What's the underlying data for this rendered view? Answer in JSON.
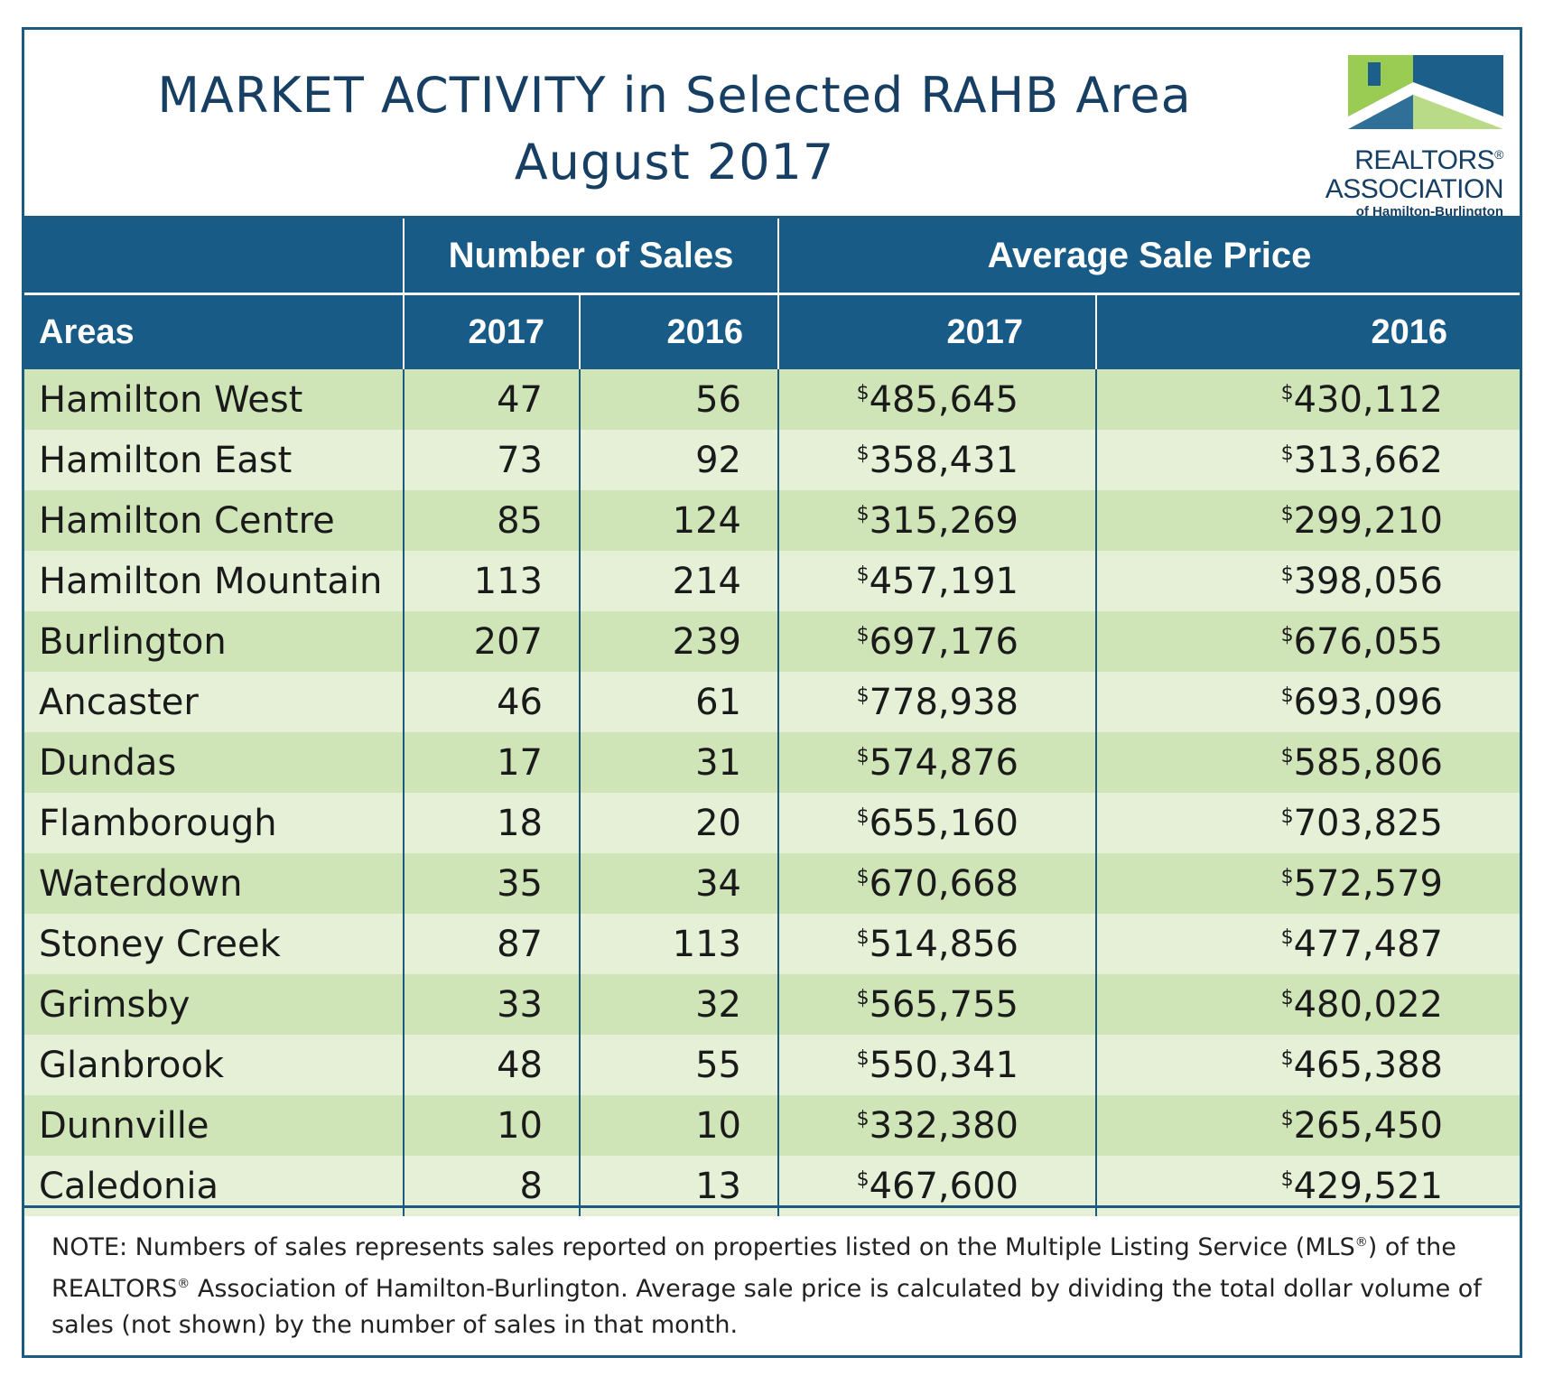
{
  "title": {
    "line1": "MARKET ACTIVITY in Selected RAHB Area",
    "line2": "August 2017"
  },
  "logo": {
    "line1": "REALTORS",
    "line1_mark": "®",
    "line2": "ASSOCIATION",
    "line3": "of Hamilton-Burlington",
    "colors": {
      "blue": "#1d5f8b",
      "green": "#9acb53"
    }
  },
  "table": {
    "group_headers": [
      "Number of Sales",
      "Average Sale Price"
    ],
    "column_headers": [
      "Areas",
      "2017",
      "2016",
      "2017",
      "2016"
    ],
    "currency_symbol": "$",
    "rows": [
      {
        "area": "Hamilton West",
        "sales_2017": "47",
        "sales_2016": "56",
        "price_2017": "485,645",
        "price_2016": "430,112"
      },
      {
        "area": "Hamilton East",
        "sales_2017": "73",
        "sales_2016": "92",
        "price_2017": "358,431",
        "price_2016": "313,662"
      },
      {
        "area": "Hamilton Centre",
        "sales_2017": "85",
        "sales_2016": "124",
        "price_2017": "315,269",
        "price_2016": "299,210"
      },
      {
        "area": "Hamilton Mountain",
        "sales_2017": "113",
        "sales_2016": "214",
        "price_2017": "457,191",
        "price_2016": "398,056"
      },
      {
        "area": "Burlington",
        "sales_2017": "207",
        "sales_2016": "239",
        "price_2017": "697,176",
        "price_2016": "676,055"
      },
      {
        "area": "Ancaster",
        "sales_2017": "46",
        "sales_2016": "61",
        "price_2017": "778,938",
        "price_2016": "693,096"
      },
      {
        "area": "Dundas",
        "sales_2017": "17",
        "sales_2016": "31",
        "price_2017": "574,876",
        "price_2016": "585,806"
      },
      {
        "area": "Flamborough",
        "sales_2017": "18",
        "sales_2016": "20",
        "price_2017": "655,160",
        "price_2016": "703,825"
      },
      {
        "area": "Waterdown",
        "sales_2017": "35",
        "sales_2016": "34",
        "price_2017": "670,668",
        "price_2016": "572,579"
      },
      {
        "area": "Stoney Creek",
        "sales_2017": "87",
        "sales_2016": "113",
        "price_2017": "514,856",
        "price_2016": "477,487"
      },
      {
        "area": "Grimsby",
        "sales_2017": "33",
        "sales_2016": "32",
        "price_2017": "565,755",
        "price_2016": "480,022"
      },
      {
        "area": "Glanbrook",
        "sales_2017": "48",
        "sales_2016": "55",
        "price_2017": "550,341",
        "price_2016": "465,388"
      },
      {
        "area": "Dunnville",
        "sales_2017": "10",
        "sales_2016": "10",
        "price_2017": "332,380",
        "price_2016": "265,450"
      },
      {
        "area": "Caledonia",
        "sales_2017": "8",
        "sales_2016": "13",
        "price_2017": "467,600",
        "price_2016": "429,521"
      }
    ],
    "colors": {
      "header_bg": "#175b86",
      "row_dark": "#cfe4b7",
      "row_light": "#e5f0d7"
    }
  },
  "note": {
    "part1": "NOTE:  Numbers of sales represents sales reported on properties listed on the Multiple Listing Service (MLS",
    "mark": "®",
    "part2": ") of the REALTORS",
    "part3": " Association of Hamilton-Burlington.  Average sale price is calculated by dividing the total dollar volume of sales (not shown) by the number of sales in that month."
  }
}
